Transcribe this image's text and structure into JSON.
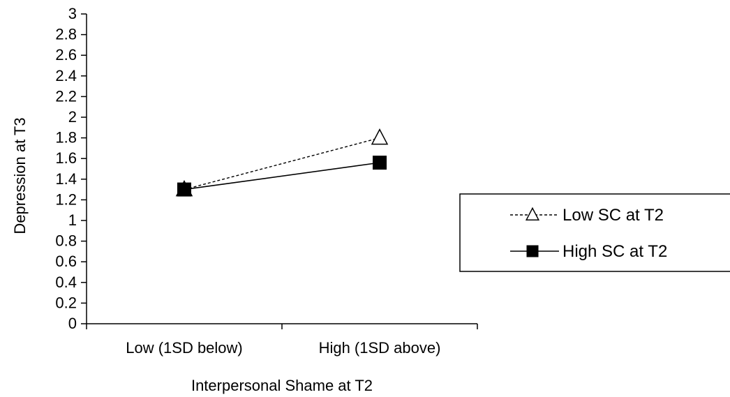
{
  "chart_data": {
    "type": "line",
    "title": "",
    "xlabel": "Interpersonal Shame at T2",
    "ylabel": "Depression at T3",
    "categories": [
      "Low (1SD below)",
      "High (1SD above)"
    ],
    "ylim": [
      0,
      3
    ],
    "ytick_step": 0.2,
    "yticks": [
      "0",
      "0.2",
      "0.4",
      "0.6",
      "0.8",
      "1",
      "1.2",
      "1.4",
      "1.6",
      "1.8",
      "2",
      "2.2",
      "2.4",
      "2.6",
      "2.8",
      "3"
    ],
    "grid": false,
    "legend_position": "right",
    "series": [
      {
        "name": "Low SC at T2",
        "values": [
          1.3,
          1.8
        ],
        "line_style": "dashed",
        "marker": "open-triangle",
        "color": "#000000"
      },
      {
        "name": "High SC at T2",
        "values": [
          1.3,
          1.56
        ],
        "line_style": "solid",
        "marker": "filled-square",
        "color": "#000000"
      }
    ]
  }
}
